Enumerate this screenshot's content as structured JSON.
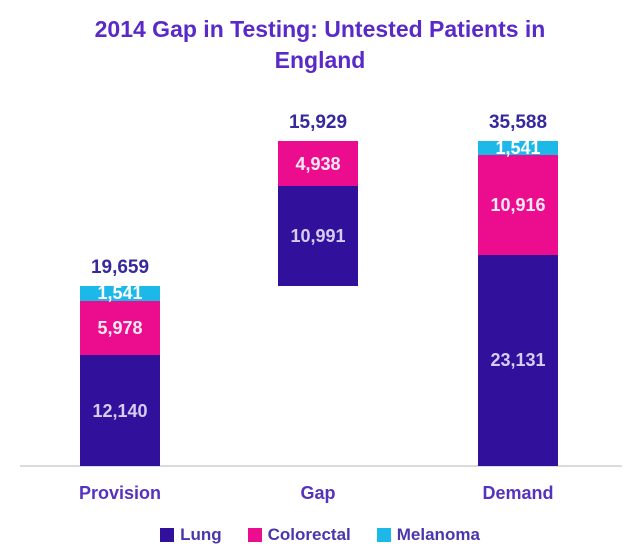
{
  "title": "2014 Gap in Testing: Untested Patients in England",
  "title_lines": [
    "2014 Gap in Testing: Untested Patients in",
    "England"
  ],
  "colors": {
    "title_text": "#5A2AC8",
    "total_label_text": "#36289D",
    "category_label_text": "#5533BF",
    "legend_text": "#4B36AE",
    "axis_line": "#DBDBDB",
    "background": "#FFFFFF",
    "lung": "#31109B",
    "colorectal": "#EC0C8E",
    "melanoma": "#1CB8E8",
    "label_on_lung": "#D5CDF2",
    "label_on_colorectal": "#F9E9F3",
    "label_on_melanoma": "#FFFFFF"
  },
  "chart_data": {
    "type": "bar",
    "subtype": "stacked-column-waterfall",
    "title": "2014 Gap in Testing: Untested Patients in England",
    "categories": [
      "Provision",
      "Gap",
      "Demand"
    ],
    "series": [
      {
        "name": "Lung",
        "color": "#31109B",
        "label_color": "#D5CDF2",
        "values": [
          12140,
          10991,
          23131
        ]
      },
      {
        "name": "Colorectal",
        "color": "#EC0C8E",
        "label_color": "#F9E9F3",
        "values": [
          5978,
          4938,
          10916
        ]
      },
      {
        "name": "Melanoma",
        "color": "#1CB8E8",
        "label_color": "#FFFFFF",
        "values": [
          1541,
          0,
          1541
        ]
      }
    ],
    "totals": [
      19659,
      15929,
      35588
    ],
    "total_labels": [
      "19,659",
      "15,929",
      "35,588"
    ],
    "segment_labels": {
      "Provision": [
        "12,140",
        "5,978",
        "1,541"
      ],
      "Gap": [
        "10,991",
        "4,938"
      ],
      "Demand": [
        "23,131",
        "10,916",
        "1,541"
      ]
    },
    "base_offsets": [
      0,
      19659,
      0
    ],
    "value_axis_max": 35588,
    "value_axis_visible": false,
    "grid": false,
    "legend_position": "bottom",
    "legend_entries": [
      "Lung",
      "Colorectal",
      "Melanoma"
    ],
    "xlabel": "",
    "ylabel": ""
  }
}
